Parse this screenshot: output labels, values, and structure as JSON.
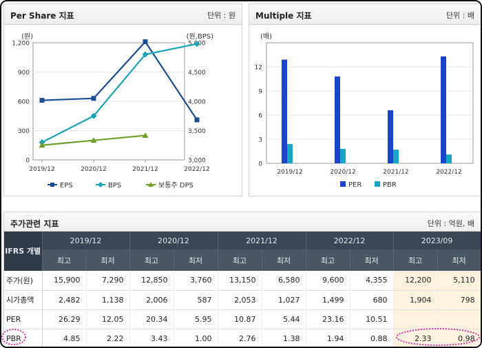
{
  "per_share": {
    "title": "Per Share 지표",
    "unit": "단위 : 원",
    "chart_data": {
      "type": "line",
      "categories": [
        "2019/12",
        "2020/12",
        "2021/12",
        "2022/12"
      ],
      "left_axis": {
        "label": "(원)",
        "ticks": [
          "1,200",
          "900",
          "600",
          "300",
          "0"
        ],
        "range": [
          0,
          1200
        ]
      },
      "right_axis": {
        "label": "(원,BPS)",
        "ticks": [
          "5,000",
          "4,500",
          "4,000",
          "3,500",
          "3,000"
        ],
        "range": [
          3000,
          5000
        ]
      },
      "series": [
        {
          "name": "EPS",
          "axis": "left",
          "color": "#1a4d95",
          "values": [
            610,
            630,
            1210,
            410
          ]
        },
        {
          "name": "BPS",
          "axis": "right",
          "color": "#1aa3b5",
          "values": [
            3300,
            3750,
            4800,
            4980
          ]
        },
        {
          "name": "보통주 DPS",
          "axis": "left",
          "color": "#6e9e2a",
          "values": [
            150,
            200,
            250,
            null
          ]
        }
      ],
      "legend_position": "bottom",
      "grid": true
    }
  },
  "multiple": {
    "title": "Multiple 지표",
    "unit": "단위 : 배",
    "chart_data": {
      "type": "bar",
      "categories": [
        "2019/12",
        "2020/12",
        "2021/12",
        "2022/12"
      ],
      "axis": {
        "label": "(배)",
        "ticks": [
          "12",
          "9",
          "6",
          "3",
          "0"
        ],
        "range": [
          0,
          15
        ]
      },
      "series": [
        {
          "name": "PER",
          "color": "#1a45c8",
          "values": [
            12.9,
            10.8,
            6.6,
            13.3
          ]
        },
        {
          "name": "PBR",
          "color": "#18a6c4",
          "values": [
            2.4,
            1.8,
            1.7,
            1.1
          ]
        }
      ],
      "legend_position": "bottom",
      "grid": true
    }
  },
  "price": {
    "title": "주가관련 지표",
    "unit": "단위 : 억원, 배",
    "row_header": "IFRS 개별",
    "periods": [
      "2019/12",
      "2020/12",
      "2021/12",
      "2022/12",
      "2023/09"
    ],
    "sub_headers": [
      "최고",
      "최저",
      "최고",
      "최저",
      "최고",
      "최저",
      "최고",
      "최저",
      "최고",
      "최저"
    ],
    "rows": [
      {
        "label": "주가(원)",
        "values": [
          "15,900",
          "7,290",
          "12,850",
          "3,760",
          "13,150",
          "6,580",
          "9,600",
          "4,355",
          "12,200",
          "5,110"
        ]
      },
      {
        "label": "시가총액",
        "values": [
          "2,482",
          "1,138",
          "2,006",
          "587",
          "2,053",
          "1,027",
          "1,499",
          "680",
          "1,904",
          "798"
        ]
      },
      {
        "label": "PER",
        "values": [
          "26.29",
          "12.05",
          "20.34",
          "5.95",
          "10.87",
          "5.44",
          "23.16",
          "10.51",
          "",
          ""
        ]
      },
      {
        "label": "PBR",
        "values": [
          "4.85",
          "2.22",
          "3.43",
          "1.00",
          "2.76",
          "1.38",
          "1.94",
          "0.88",
          "2.33",
          "0.98"
        ]
      }
    ],
    "highlight_color": "#fdf2df",
    "annotation_color": "#e0309a"
  }
}
